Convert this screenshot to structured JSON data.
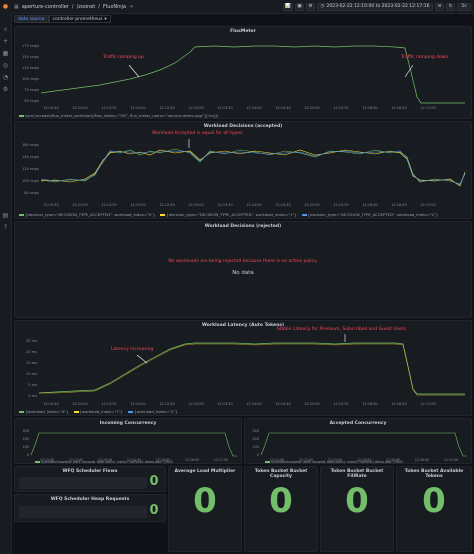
{
  "header": {
    "crumbs": [
      "aperture-controller",
      "/",
      "/zoonet",
      "/",
      "FluxNinja"
    ],
    "time_range": "2023-02-22 12:10:00 to 2023-02-22 12:17:16",
    "zoom_label": "⊖",
    "refresh_label": "5s"
  },
  "variables": {
    "label": "data source",
    "value": "controller-prometheus"
  },
  "panels": {
    "fluxmeter": {
      "title": "FluxMeter",
      "legend": "sum(increase(flux_meter_workload{flow_status=\"OK\", flux_meter_name=\"service-demo-app\"}[1m]))",
      "annot_left": "Traffic ramping up",
      "annot_right": "Traffic ramping down",
      "y_ticks": [
        "50 req/s",
        "75 req/s",
        "100 req/s",
        "125 req/s",
        "150 req/s",
        "175 req/s"
      ],
      "x_ticks": [
        "12:10:30",
        "12:11:00",
        "12:11:30",
        "12:12:00",
        "12:12:30",
        "12:13:00",
        "12:13:30",
        "12:14:00",
        "12:14:30",
        "12:15:00",
        "12:15:30",
        "12:16:00",
        "12:16:30",
        "12:17:00"
      ]
    },
    "accepted": {
      "title": "Workload Decisions (accepted)",
      "annot": "Workload Accepted is equal for all types",
      "legend": [
        "{decision_type=\"DECISION_TYPE_ACCEPTED\", workload_index=\"0\"}",
        "{decision_type=\"DECISION_TYPE_ACCEPTED\", workload_index=\"1\"}",
        "{decision_type=\"DECISION_TYPE_ACCEPTED\", workload_index=\"2\"}"
      ],
      "y_ticks": [
        "80 req/s",
        "100 req/s",
        "120 req/s",
        "140 req/s",
        "160 req/s"
      ],
      "x_ticks": [
        "12:10:30",
        "12:11:00",
        "12:11:30",
        "12:12:00",
        "12:12:30",
        "12:13:00",
        "12:13:30",
        "12:14:00",
        "12:14:30",
        "12:15:00",
        "12:15:30",
        "12:16:00",
        "12:16:30",
        "12:17:00"
      ]
    },
    "rejected": {
      "title": "Workload Decisions (rejected)",
      "annot": "No workloads are being rejected because there is no active policy.",
      "nodata": "No data"
    },
    "latency": {
      "title": "Workload Latency (Auto Tokens)",
      "annot_left": "Latency increasing",
      "annot_right": "Stable Latency for Premium, Subscribed and Guest Users",
      "legend": [
        "{workload_index=\"0\"}",
        "{workload_index=\"1\"}",
        "{workload_index=\"2\"}"
      ],
      "y_ticks": [
        "0 ms",
        "5 ms",
        "10 ms",
        "15 ms",
        "20 ms",
        "25 ms"
      ],
      "x_ticks": [
        "12:10:30",
        "12:11:00",
        "12:11:30",
        "12:12:00",
        "12:12:30",
        "12:13:00",
        "12:13:30",
        "12:14:00",
        "12:14:30",
        "12:15:00",
        "12:15:30",
        "12:16:00",
        "12:16:30",
        "12:17:00"
      ]
    },
    "incoming": {
      "title": "Incoming Concurrency",
      "legend": "sum(rate(incoming_work_seconds_total{policy_name=\"service1-demo-app\"}[5s]))",
      "y_ticks": [
        "0",
        "100",
        "200",
        "300"
      ],
      "x_ticks": [
        "12:11:00",
        "12:12:00",
        "12:13:00",
        "12:14:00",
        "12:15:00",
        "12:16:00",
        "12:17:00"
      ]
    },
    "accepted_conc": {
      "title": "Accepted Concurrency",
      "legend": "sum(rate(accepted_work_seconds_total{policy_name=\"service1-demo-app\"}[5s]))",
      "y_ticks": [
        "0",
        "100",
        "200",
        "300"
      ],
      "x_ticks": [
        "12:11:00",
        "12:12:00",
        "12:13:00",
        "12:14:00",
        "12:15:00",
        "12:16:00",
        "12:17:00"
      ]
    },
    "wfq_flows": {
      "title": "WFQ Scheduler Flows"
    },
    "wfq_heap": {
      "title": "WFQ Scheduler Heap Requests",
      "value": "0"
    },
    "avg_load": {
      "title": "Average Load Multiplier",
      "value": "0"
    },
    "tb_capacity": {
      "title": "Token Bucket Bucket Capacity",
      "value": "0"
    },
    "tb_fillrate": {
      "title": "Token Bucket Bucket FillRate",
      "value": "0"
    },
    "tb_available": {
      "title": "Token Bucket Available Tokens",
      "value": "0"
    },
    "wfq_flows_value": "0"
  },
  "colors": {
    "series_green": "#73bf69",
    "series_yellow": "#fade2a",
    "series_blue": "#5794f2",
    "annotation_red": "#f2495c"
  }
}
